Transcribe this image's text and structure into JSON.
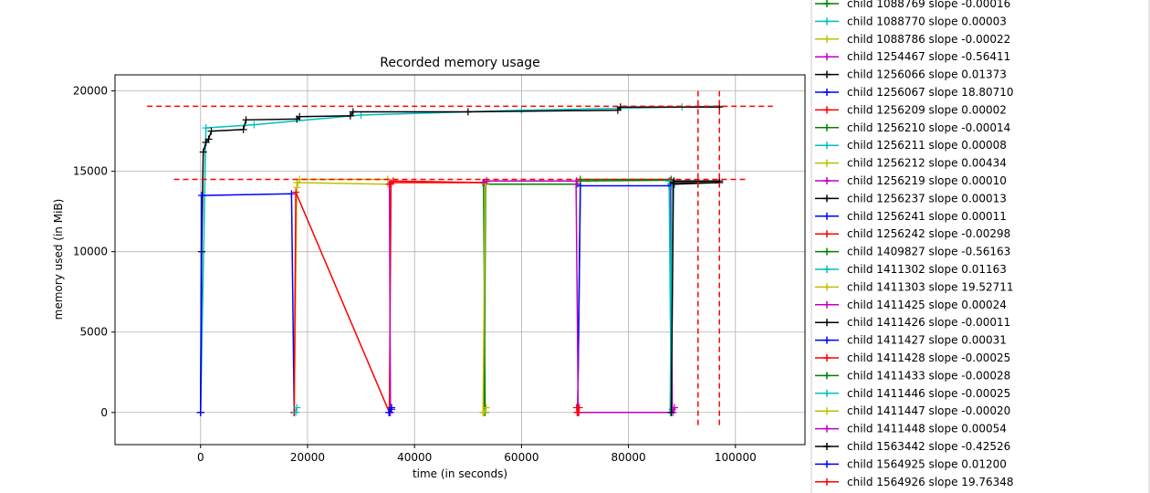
{
  "chart_data": {
    "type": "line",
    "title": "Recorded memory usage",
    "xlabel": "time (in seconds)",
    "ylabel": "memory used (in MiB)",
    "xlim": [
      -16000,
      113000
    ],
    "ylim": [
      -2000,
      21000
    ],
    "xticks": [
      0,
      20000,
      40000,
      60000,
      80000,
      100000
    ],
    "yticks": [
      0,
      5000,
      10000,
      15000,
      20000
    ],
    "xtick_labels": [
      "0",
      "20000",
      "40000",
      "60000",
      "80000",
      "100000"
    ],
    "ytick_labels": [
      "0",
      "5000",
      "10000",
      "15000",
      "20000"
    ],
    "grid": true,
    "legend_placement": "outside-right",
    "reference_lines": {
      "color": "#ff0000",
      "style": "dashed",
      "horizontal": [
        {
          "y": 19050,
          "x": [
            -10000,
            107000
          ]
        },
        {
          "y": 14500,
          "x": [
            -5000,
            102000
          ]
        }
      ],
      "vertical": [
        {
          "x": 93000,
          "y": [
            -1000,
            20000
          ]
        },
        {
          "x": 97000,
          "y": [
            -1000,
            20000
          ]
        }
      ]
    },
    "series": [
      {
        "name": "child 1088769 slope -0.00016",
        "color": "#008000",
        "x": [
          70500,
          71000,
          88000
        ],
        "y": [
          0,
          14400,
          14450
        ]
      },
      {
        "name": "child 1088770 slope 0.00003",
        "color": "#00bfbf",
        "x": [
          0,
          1000,
          10000,
          30000,
          60000,
          90000,
          97000
        ],
        "y": [
          0,
          17700,
          17900,
          18500,
          18800,
          19000,
          19050
        ]
      },
      {
        "name": "child 1088786 slope -0.00022",
        "color": "#bfbf00",
        "x": [
          17500,
          18000,
          35000
        ],
        "y": [
          0,
          14300,
          14200
        ]
      },
      {
        "name": "child 1254467 slope -0.56411",
        "color": "#bf00bf",
        "x": [
          87800,
          88200
        ],
        "y": [
          14400,
          200
        ]
      },
      {
        "name": "child 1256066 slope 0.01373",
        "color": "#000000",
        "x": [
          0,
          200,
          500,
          1000,
          1500,
          2000,
          8000,
          8500,
          18000,
          18500,
          28000,
          28500,
          50000,
          78000,
          78500,
          97000
        ],
        "y": [
          0,
          10000,
          16200,
          16800,
          17000,
          17500,
          17600,
          18200,
          18250,
          18400,
          18450,
          18700,
          18700,
          18800,
          19000,
          19000
        ]
      },
      {
        "name": "child 1256067 slope 18.80710",
        "color": "#0000ff",
        "x": [
          0,
          200,
          17000,
          17500
        ],
        "y": [
          0,
          13500,
          13600,
          0
        ]
      },
      {
        "name": "child 1256209 slope 0.00002",
        "color": "#ff0000",
        "x": [
          17500,
          17800,
          35300,
          35600,
          52800
        ],
        "y": [
          0,
          13700,
          0,
          14300,
          14300
        ]
      },
      {
        "name": "child 1256210 slope -0.00014",
        "color": "#008000",
        "x": [
          53000,
          53300,
          70500
        ],
        "y": [
          0,
          14200,
          14200
        ]
      },
      {
        "name": "child 1256211 slope 0.00008",
        "color": "#00bfbf",
        "x": [
          17800,
          18000
        ],
        "y": [
          0,
          300
        ]
      },
      {
        "name": "child 1256212 slope 0.00434",
        "color": "#bfbf00",
        "x": [
          18000,
          18500,
          35000
        ],
        "y": [
          14000,
          14500,
          14500
        ]
      },
      {
        "name": "child 1256219 slope 0.00010",
        "color": "#bf00bf",
        "x": [
          35300,
          35500
        ],
        "y": [
          14200,
          0
        ]
      },
      {
        "name": "child 1256237 slope 0.00013",
        "color": "#000000",
        "x": [
          88000,
          88500,
          97000
        ],
        "y": [
          14200,
          14400,
          14400
        ]
      },
      {
        "name": "child 1256241 slope 0.00011",
        "color": "#0000ff",
        "x": [
          35200,
          35700
        ],
        "y": [
          0,
          300
        ]
      },
      {
        "name": "child 1256242 slope -0.00298",
        "color": "#ff0000",
        "x": [
          35500,
          36000,
          52800
        ],
        "y": [
          14200,
          14400,
          14300
        ]
      },
      {
        "name": "child 1409827 slope -0.56163",
        "color": "#008000",
        "x": [
          52900,
          53200
        ],
        "y": [
          14300,
          0
        ]
      },
      {
        "name": "child 1411302 slope 0.01163",
        "color": "#00bfbf",
        "x": [
          87600,
          88000
        ],
        "y": [
          14400,
          0
        ]
      },
      {
        "name": "child 1411303 slope 19.52711",
        "color": "#bfbf00",
        "x": [
          52800,
          53200,
          53400
        ],
        "y": [
          0,
          14200,
          14300
        ]
      },
      {
        "name": "child 1411425 slope 0.00024",
        "color": "#bf00bf",
        "x": [
          53000,
          53500,
          70300
        ],
        "y": [
          14300,
          14400,
          14400
        ]
      },
      {
        "name": "child 1411426 slope -0.00011",
        "color": "#000000",
        "x": [
          88500,
          97000
        ],
        "y": [
          14200,
          14300
        ]
      },
      {
        "name": "child 1411427 slope 0.00031",
        "color": "#0000ff",
        "x": [
          70500,
          71000,
          88000
        ],
        "y": [
          0,
          14100,
          14100
        ]
      },
      {
        "name": "child 1411428 slope -0.00025",
        "color": "#ff0000",
        "x": [
          70400,
          70800
        ],
        "y": [
          0,
          300
        ]
      },
      {
        "name": "child 1411433 slope -0.00028",
        "color": "#008000",
        "x": [
          71000,
          88000
        ],
        "y": [
          14500,
          14500
        ]
      },
      {
        "name": "child 1411446 slope -0.00025",
        "color": "#00bfbf",
        "x": [
          87800,
          88100
        ],
        "y": [
          0,
          14000
        ]
      },
      {
        "name": "child 1411447 slope -0.00020",
        "color": "#bfbf00",
        "x": [
          53000,
          53400
        ],
        "y": [
          0,
          300
        ]
      },
      {
        "name": "child 1411448 slope 0.00054",
        "color": "#bf00bf",
        "x": [
          70200,
          70600,
          88300,
          88600
        ],
        "y": [
          14200,
          0,
          0,
          300
        ]
      },
      {
        "name": "child 1563442 slope -0.42526",
        "color": "#000000",
        "x": [
          88000,
          88400,
          97000
        ],
        "y": [
          0,
          14300,
          14300
        ]
      },
      {
        "name": "child 1564925 slope 0.01200",
        "color": "#0000ff",
        "x": [
          35300,
          35700
        ],
        "y": [
          0,
          200
        ]
      },
      {
        "name": "child 1564926 slope 19.76348",
        "color": "#ff0000",
        "x": [
          70300,
          70700
        ],
        "y": [
          300,
          0
        ]
      }
    ]
  }
}
